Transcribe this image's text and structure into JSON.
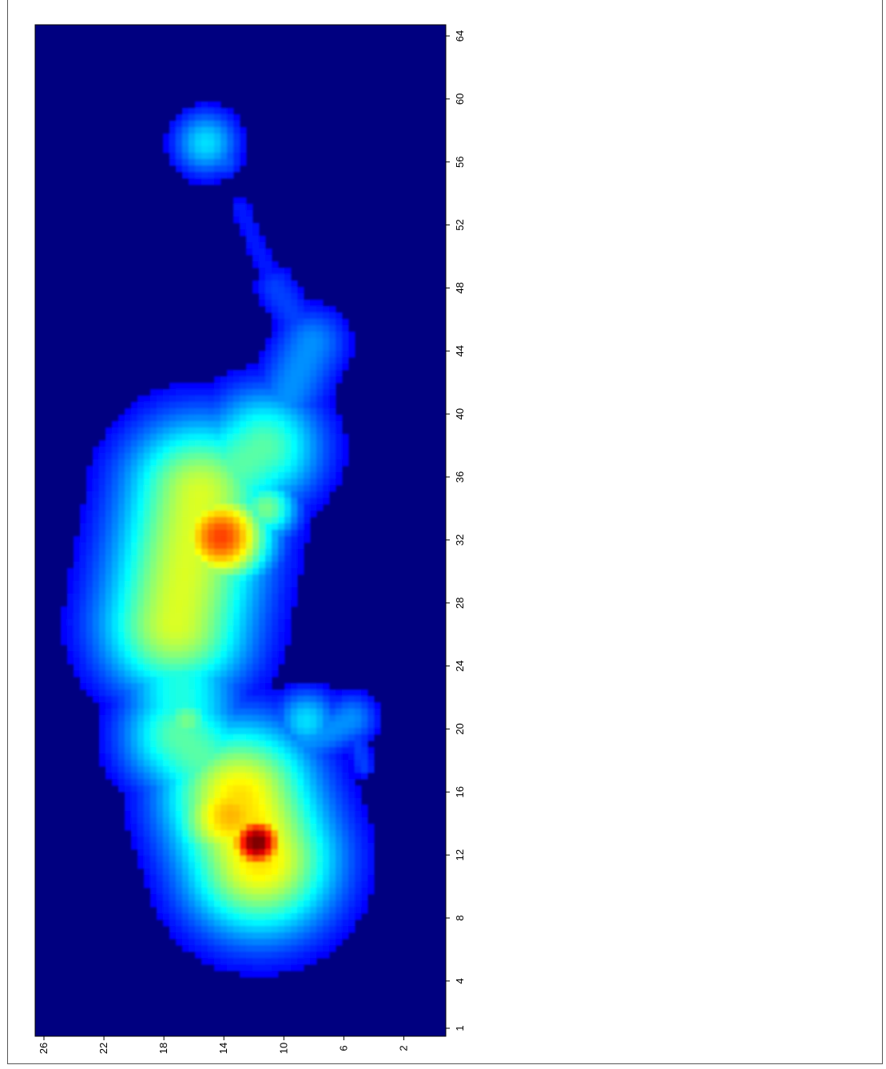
{
  "chart_data": {
    "type": "heatmap",
    "title": "",
    "xlabel": "",
    "ylabel": "",
    "orientation": "rotated-90",
    "colormap": "jet",
    "background_color": "#000080",
    "x_ticks": [
      "1",
      "4",
      "8",
      "12",
      "16",
      "20",
      "24",
      "28",
      "32",
      "36",
      "40",
      "44",
      "48",
      "52",
      "56",
      "60",
      "64"
    ],
    "y_ticks": [
      "2",
      "6",
      "10",
      "14",
      "18",
      "22",
      "26"
    ],
    "xlim": [
      1,
      64
    ],
    "ylim": [
      0,
      26
    ],
    "grid": false,
    "legend": "none",
    "peaks": [
      {
        "x": 12.8,
        "y": 11.8,
        "value": 1.0
      },
      {
        "x": 32.2,
        "y": 14.2,
        "value": 0.78
      },
      {
        "x": 14.5,
        "y": 13.5,
        "value": 0.66
      },
      {
        "x": 20.5,
        "y": 16.5,
        "value": 0.45
      },
      {
        "x": 26.5,
        "y": 16.0,
        "value": 0.5
      },
      {
        "x": 34.0,
        "y": 11.2,
        "value": 0.45
      },
      {
        "x": 38.5,
        "y": 10.5,
        "value": 0.32
      },
      {
        "x": 20.5,
        "y": 8.5,
        "value": 0.3
      },
      {
        "x": 43.0,
        "y": 9.0,
        "value": 0.2
      },
      {
        "x": 57.2,
        "y": 15.2,
        "value": 0.3
      }
    ]
  }
}
